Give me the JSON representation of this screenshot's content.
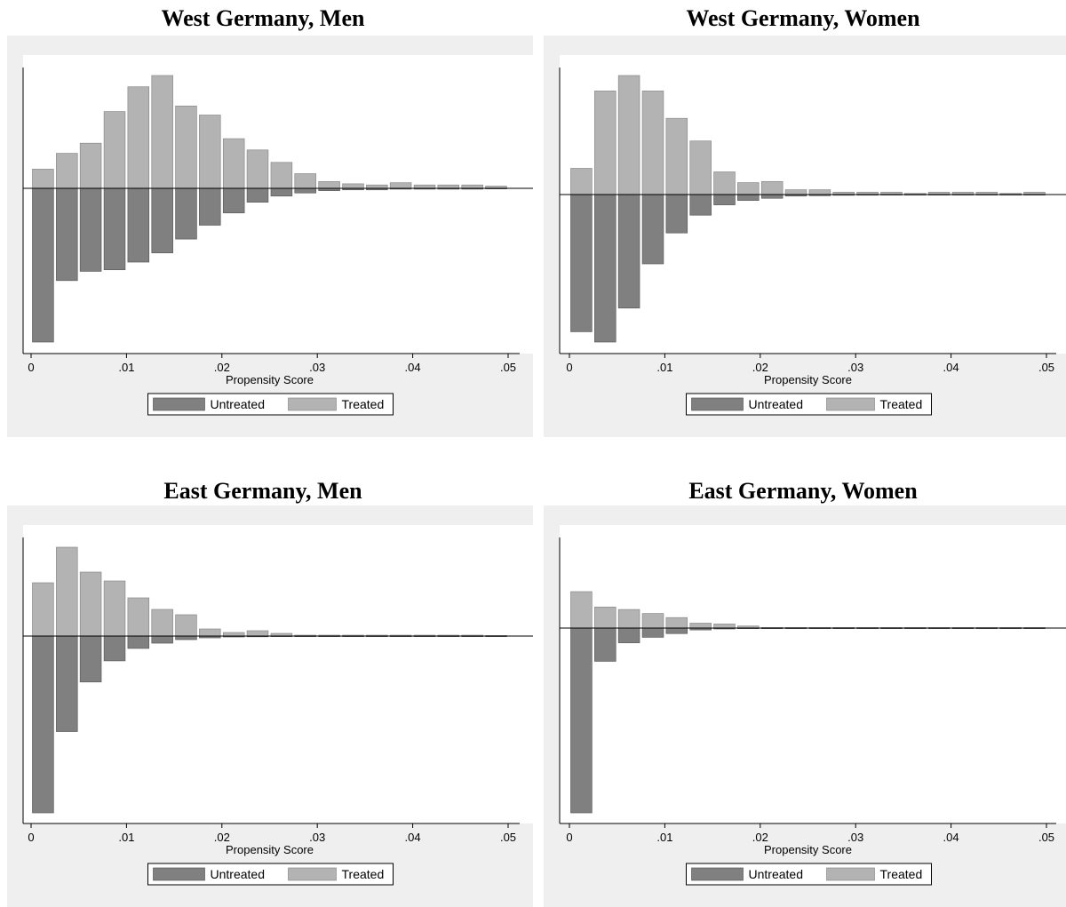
{
  "colors": {
    "untreated": "#808080",
    "treated": "#b3b3b3",
    "panel_bg": "#efefef",
    "plot_bg": "#ffffff"
  },
  "chart_data": [
    {
      "type": "bar",
      "title": "West Germany, Men",
      "xlabel": "Propensity Score",
      "xlim": [
        0,
        0.05
      ],
      "xticks": [
        "0",
        ".01",
        ".02",
        ".03",
        ".04",
        ".05"
      ],
      "bin_width": 0.0025,
      "legend": [
        "Untreated",
        "Treated"
      ],
      "legend_position": "bottom",
      "x": [
        0.00125,
        0.00375,
        0.00625,
        0.00875,
        0.01125,
        0.01375,
        0.01625,
        0.01875,
        0.02125,
        0.02375,
        0.02625,
        0.02875,
        0.03125,
        0.03375,
        0.03625,
        0.03875,
        0.04125,
        0.04375,
        0.04625,
        0.04875
      ],
      "series": [
        {
          "name": "Treated",
          "values": [
            0.17,
            0.31,
            0.4,
            0.68,
            0.9,
            1.0,
            0.73,
            0.65,
            0.44,
            0.34,
            0.23,
            0.13,
            0.06,
            0.04,
            0.03,
            0.05,
            0.03,
            0.03,
            0.03,
            0.02
          ]
        },
        {
          "name": "Untreated",
          "values": [
            1.0,
            0.6,
            0.54,
            0.53,
            0.48,
            0.42,
            0.33,
            0.24,
            0.16,
            0.09,
            0.05,
            0.03,
            0.015,
            0.01,
            0.01,
            0.005,
            0.005,
            0.005,
            0.005,
            0.003
          ]
        }
      ]
    },
    {
      "type": "bar",
      "title": "West Germany, Women",
      "xlabel": "Propensity Score",
      "xlim": [
        0,
        0.05
      ],
      "xticks": [
        "0",
        ".01",
        ".02",
        ".03",
        ".04",
        ".05"
      ],
      "bin_width": 0.0025,
      "legend": [
        "Untreated",
        "Treated"
      ],
      "legend_position": "bottom",
      "x": [
        0.00125,
        0.00375,
        0.00625,
        0.00875,
        0.01125,
        0.01375,
        0.01625,
        0.01875,
        0.02125,
        0.02375,
        0.02625,
        0.02875,
        0.03125,
        0.03375,
        0.03625,
        0.03875,
        0.04125,
        0.04375,
        0.04625,
        0.04875
      ],
      "series": [
        {
          "name": "Treated",
          "values": [
            0.22,
            0.87,
            1.0,
            0.87,
            0.64,
            0.45,
            0.19,
            0.1,
            0.11,
            0.04,
            0.04,
            0.02,
            0.02,
            0.02,
            0.01,
            0.02,
            0.02,
            0.02,
            0.01,
            0.02
          ]
        },
        {
          "name": "Untreated",
          "values": [
            0.93,
            1.0,
            0.77,
            0.47,
            0.26,
            0.14,
            0.07,
            0.04,
            0.025,
            0.01,
            0.008,
            0.005,
            0.004,
            0.003,
            0.003,
            0.002,
            0.002,
            0.002,
            0.002,
            0.002
          ]
        }
      ]
    },
    {
      "type": "bar",
      "title": "East Germany, Men",
      "xlabel": "Propensity Score",
      "xlim": [
        0,
        0.05
      ],
      "xticks": [
        "0",
        ".01",
        ".02",
        ".03",
        ".04",
        ".05"
      ],
      "bin_width": 0.0025,
      "legend": [
        "Untreated",
        "Treated"
      ],
      "legend_position": "bottom",
      "x": [
        0.00125,
        0.00375,
        0.00625,
        0.00875,
        0.01125,
        0.01375,
        0.01625,
        0.01875,
        0.02125,
        0.02375,
        0.02625,
        0.02875,
        0.03125,
        0.03375,
        0.03625,
        0.03875,
        0.04125,
        0.04375,
        0.04625,
        0.04875
      ],
      "series": [
        {
          "name": "Treated",
          "values": [
            0.6,
            1.0,
            0.72,
            0.62,
            0.43,
            0.3,
            0.24,
            0.08,
            0.04,
            0.06,
            0.03,
            0.01,
            0.01,
            0.01,
            0.01,
            0.01,
            0.01,
            0.01,
            0.01,
            0.005
          ]
        },
        {
          "name": "Untreated",
          "values": [
            1.0,
            0.54,
            0.26,
            0.14,
            0.07,
            0.04,
            0.02,
            0.01,
            0.005,
            0.004,
            0.003,
            0.002,
            0.002,
            0.002,
            0.001,
            0.001,
            0.001,
            0.001,
            0.001,
            0.001
          ]
        }
      ]
    },
    {
      "type": "bar",
      "title": "East Germany, Women",
      "xlabel": "Propensity Score",
      "xlim": [
        0,
        0.05
      ],
      "xticks": [
        "0",
        ".01",
        ".02",
        ".03",
        ".04",
        ".05"
      ],
      "bin_width": 0.0025,
      "legend": [
        "Untreated",
        "Treated"
      ],
      "legend_position": "bottom",
      "x": [
        0.00125,
        0.00375,
        0.00625,
        0.00875,
        0.01125,
        0.01375,
        0.01625,
        0.01875,
        0.02125,
        0.02375,
        0.02625,
        0.02875,
        0.03125,
        0.03375,
        0.03625,
        0.03875,
        0.04125,
        0.04375,
        0.04625,
        0.04875
      ],
      "series": [
        {
          "name": "Treated",
          "values": [
            0.45,
            0.26,
            0.23,
            0.18,
            0.13,
            0.06,
            0.05,
            0.025,
            0.006,
            0.005,
            0.004,
            0.004,
            0.003,
            0.003,
            0.003,
            0.003,
            0.003,
            0.003,
            0.003,
            0.003
          ]
        },
        {
          "name": "Untreated",
          "values": [
            1.0,
            0.18,
            0.08,
            0.05,
            0.03,
            0.01,
            0.005,
            0.003,
            0.002,
            0.001,
            0.001,
            0.001,
            0.001,
            0.001,
            0.001,
            0.001,
            0.001,
            0.001,
            0.001,
            0.001
          ]
        }
      ]
    }
  ]
}
